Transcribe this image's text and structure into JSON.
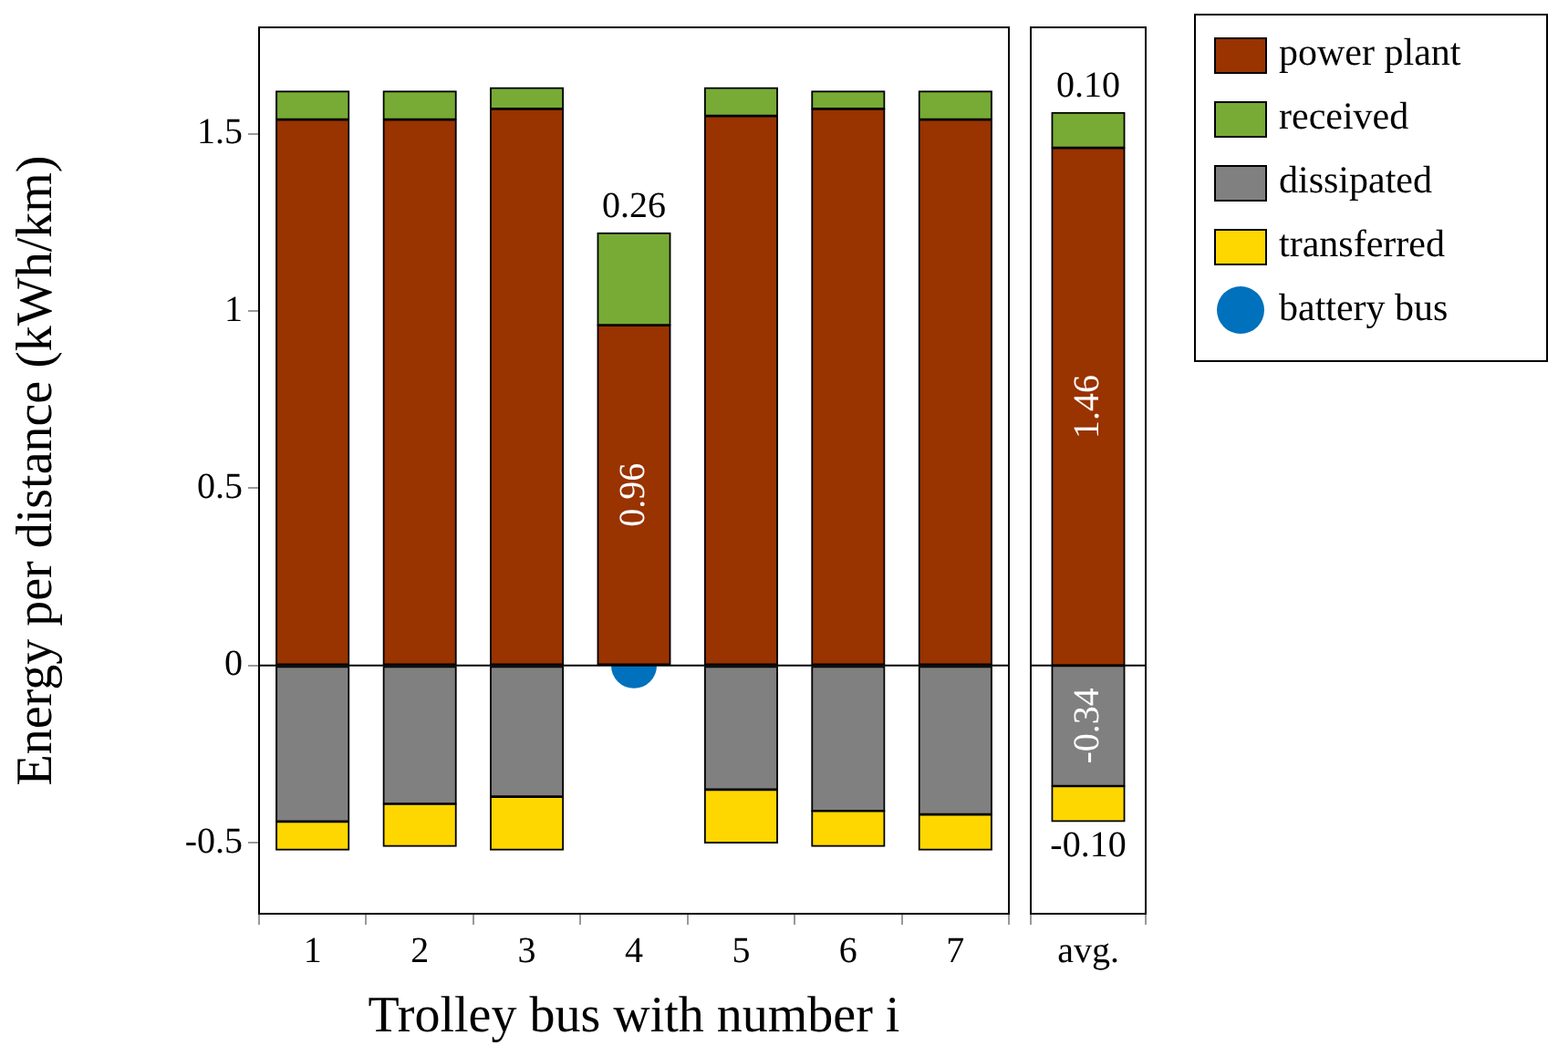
{
  "chart_data": [
    {
      "type": "bar",
      "stacked": true,
      "xlabel": "Trolley bus with number i",
      "ylabel": "Energy per distance (kWh/km)",
      "categories": [
        "1",
        "2",
        "3",
        "4",
        "5",
        "6",
        "7"
      ],
      "series": [
        {
          "name": "power plant",
          "color": "#993300",
          "values": [
            1.54,
            1.54,
            1.57,
            0.96,
            1.55,
            1.57,
            1.54
          ],
          "value_labels": [
            null,
            null,
            null,
            "0.96",
            null,
            null,
            null
          ]
        },
        {
          "name": "received",
          "color": "#77ab35",
          "values": [
            0.08,
            0.08,
            0.06,
            0.26,
            0.08,
            0.05,
            0.08
          ],
          "value_labels": [
            null,
            null,
            null,
            "0.26",
            null,
            null,
            null
          ]
        },
        {
          "name": "dissipated",
          "color": "#808080",
          "values": [
            -0.44,
            -0.39,
            -0.37,
            null,
            -0.35,
            -0.41,
            -0.42
          ]
        },
        {
          "name": "transferred",
          "color": "#ffd700",
          "values": [
            -0.08,
            -0.12,
            -0.15,
            null,
            -0.15,
            -0.1,
            -0.1
          ]
        },
        {
          "name": "battery bus",
          "type": "scatter",
          "marker": "circle",
          "color": "#0071bc",
          "x": [
            "4"
          ],
          "values": [
            0
          ]
        }
      ],
      "ylim": [
        -0.7,
        1.8
      ],
      "yticks": [
        -0.5,
        0,
        0.5,
        1,
        1.5
      ],
      "grid": false,
      "legend": "right",
      "ref_lines": [
        {
          "axis": "y",
          "value": 0,
          "color": "#000000"
        }
      ]
    },
    {
      "type": "bar",
      "stacked": true,
      "categories": [
        "avg."
      ],
      "series": [
        {
          "color": "#993300",
          "values": [
            1.46
          ],
          "value_labels": [
            "1.46"
          ]
        },
        {
          "color": "#77ab35",
          "values": [
            0.1
          ],
          "value_labels": [
            "0.10"
          ]
        },
        {
          "color": "#808080",
          "values": [
            -0.34
          ],
          "value_labels": [
            "-0.34"
          ]
        },
        {
          "color": "#ffd700",
          "values": [
            -0.1
          ],
          "value_labels": [
            "-0.10"
          ]
        }
      ],
      "ylim": [
        -0.7,
        1.8
      ],
      "yticks": [
        -0.5,
        0,
        0.5,
        1,
        1.5
      ],
      "grid": false,
      "tick_labels": "x",
      "ref_lines": [
        {
          "axis": "y",
          "value": 0,
          "color": "#000000"
        }
      ]
    }
  ]
}
